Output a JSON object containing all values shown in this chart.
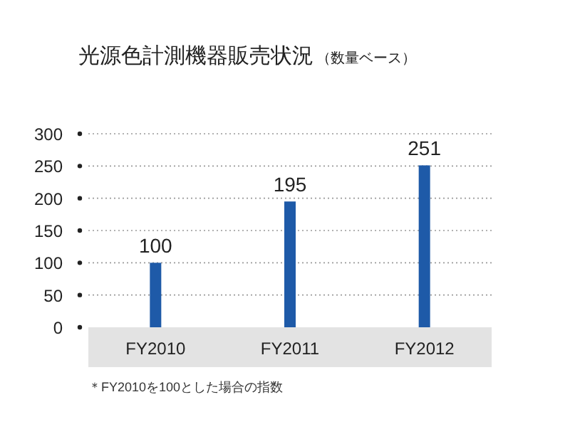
{
  "chart_data": {
    "type": "bar",
    "title": "光源色計測機器販売状況",
    "subtitle": "（数量ベース）",
    "categories": [
      "FY2010",
      "FY2011",
      "FY2012"
    ],
    "values": [
      100,
      195,
      251
    ],
    "color": "#1e5aa8",
    "ylim": [
      0,
      300
    ],
    "yticks": [
      0,
      50,
      100,
      150,
      200,
      250,
      300
    ],
    "grid": "y",
    "data_labels": true,
    "annotations": [
      "＊FY2010を100とした場合の指数"
    ]
  }
}
